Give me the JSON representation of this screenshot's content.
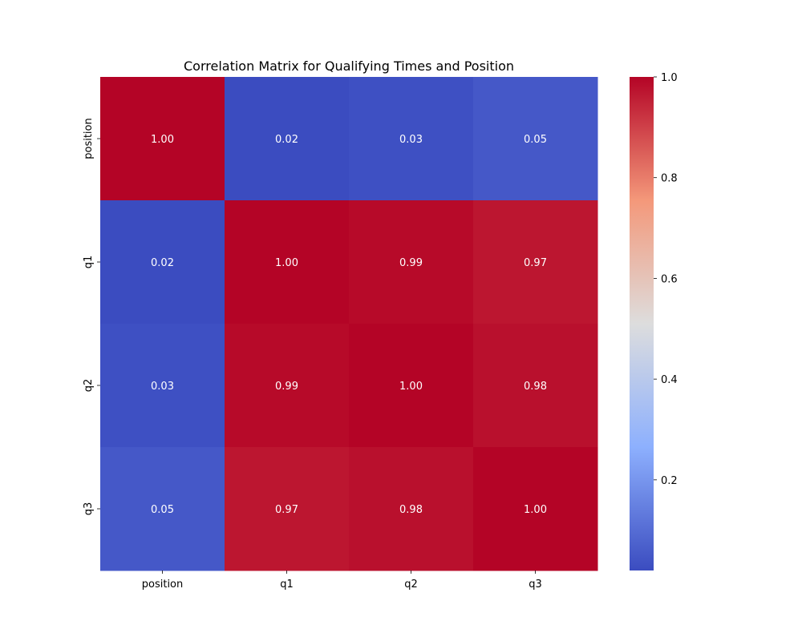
{
  "chart_data": {
    "type": "heatmap",
    "title": "Correlation Matrix for Qualifying Times and Position",
    "xlabel": "",
    "ylabel": "",
    "x_labels": [
      "position",
      "q1",
      "q2",
      "q3"
    ],
    "y_labels": [
      "position",
      "q1",
      "q2",
      "q3"
    ],
    "values": [
      [
        1.0,
        0.02,
        0.03,
        0.05
      ],
      [
        0.02,
        1.0,
        0.99,
        0.97
      ],
      [
        0.03,
        0.99,
        1.0,
        0.98
      ],
      [
        0.05,
        0.97,
        0.98,
        1.0
      ]
    ],
    "value_labels": [
      [
        "1.00",
        "0.02",
        "0.03",
        "0.05"
      ],
      [
        "0.02",
        "1.00",
        "0.99",
        "0.97"
      ],
      [
        "0.03",
        "0.99",
        "1.00",
        "0.98"
      ],
      [
        "0.05",
        "0.97",
        "0.98",
        "1.00"
      ]
    ],
    "colormap": "coolwarm",
    "colorbar": {
      "range": [
        0.02,
        1.0
      ],
      "ticks": [
        0.2,
        0.4,
        0.6,
        0.8,
        1.0
      ],
      "tick_labels": [
        "0.2",
        "0.4",
        "0.6",
        "0.8",
        "1.0"
      ]
    },
    "grid": false,
    "legend": "colorbar-right"
  }
}
